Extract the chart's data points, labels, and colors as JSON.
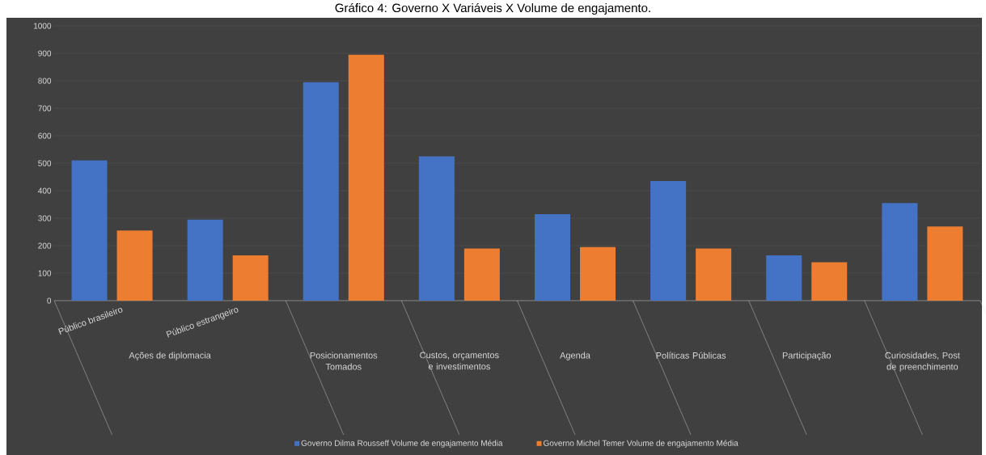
{
  "chart_data": {
    "type": "bar",
    "title": "Gráfico 4: Governo X Variáveis X Volume de engajamento.",
    "categories": [
      "Público brasileiro",
      "Público estrangeiro",
      "Posicionamentos Tomados",
      "Custos, orçamentos e investimentos",
      "Agenda",
      "Políticas Públicas",
      "Participação",
      "Curiosidades, Post de preenchimento"
    ],
    "series": [
      {
        "name": "Governo Dilma Rousseff Volume de engajamento Média",
        "color": "#4472c4",
        "values": [
          510,
          295,
          795,
          525,
          315,
          435,
          165,
          355
        ]
      },
      {
        "name": "Governo Michel Temer Volume de engajamento Média",
        "color": "#ed7d31",
        "values": [
          255,
          165,
          895,
          190,
          195,
          190,
          140,
          270
        ]
      }
    ],
    "annotations": [
      "Ações de diplomacia"
    ],
    "ylim": [
      0,
      1000
    ],
    "yticks": [
      0,
      100,
      200,
      300,
      400,
      500,
      600,
      700,
      800,
      900,
      1000
    ],
    "grid": "y",
    "legend": "bottom"
  }
}
